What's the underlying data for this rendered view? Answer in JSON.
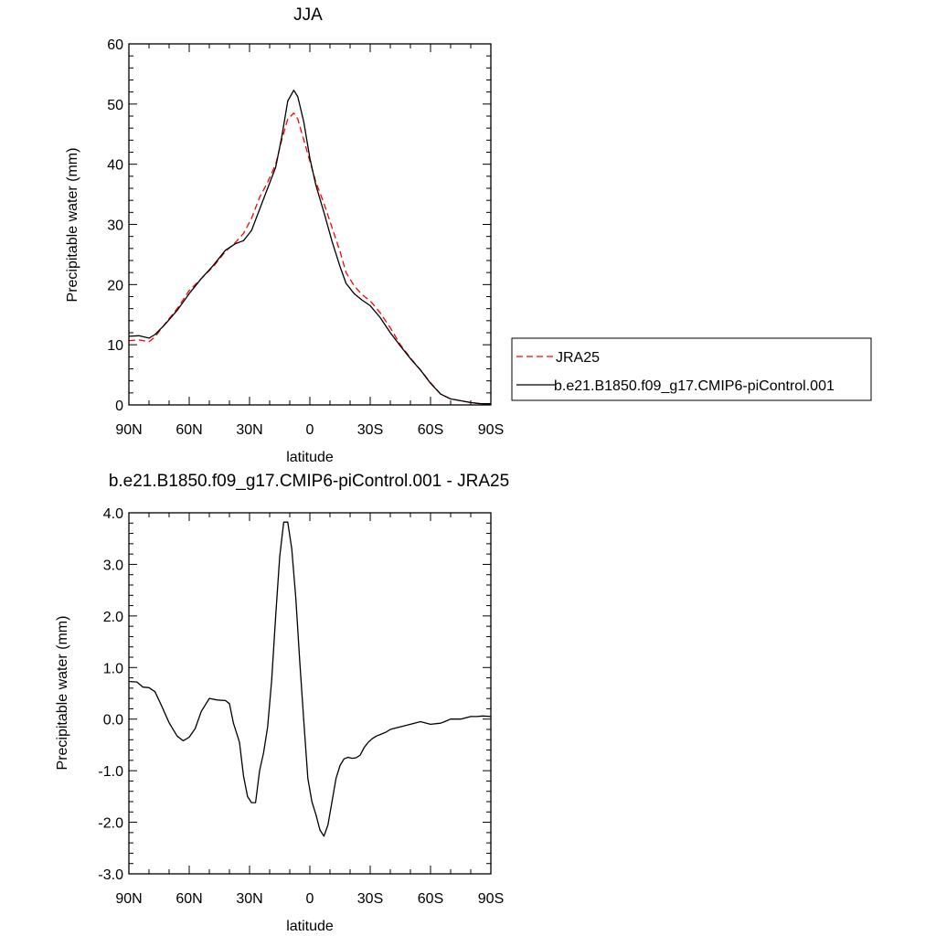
{
  "chart_data": [
    {
      "type": "line",
      "title": "JJA",
      "xlabel": "latitude",
      "ylabel": "Precipitable water (mm)",
      "xlim": [
        90,
        -90
      ],
      "ylim": [
        0,
        60
      ],
      "x_ticks": [
        90,
        60,
        30,
        0,
        -30,
        -60,
        -90
      ],
      "x_tick_labels": [
        "90N",
        "60N",
        "30N",
        "0",
        "30S",
        "60S",
        "90S"
      ],
      "y_ticks": [
        0,
        10,
        20,
        30,
        40,
        50,
        60
      ],
      "y_tick_labels": [
        "0",
        "10",
        "20",
        "30",
        "40",
        "50",
        "60"
      ],
      "grid": false,
      "legend_position": "right",
      "series": [
        {
          "name": "JRA25",
          "color": "#ff0000",
          "style": "dashed",
          "x": [
            90,
            85,
            80,
            77,
            72,
            66,
            60,
            54,
            48,
            42,
            37,
            33,
            29,
            25,
            21,
            17,
            14,
            11,
            8,
            6,
            3,
            0,
            -3,
            -7,
            -11,
            -15,
            -18,
            -22,
            -26,
            -30,
            -35,
            -40,
            -45,
            -50,
            -55,
            -60,
            -65,
            -70,
            -75,
            -80,
            -85,
            -90
          ],
          "y": [
            10.7,
            10.8,
            10.5,
            11.3,
            13.5,
            16,
            19,
            21,
            23,
            25.5,
            27,
            28.5,
            31,
            34.5,
            37,
            40,
            44,
            47.5,
            48.5,
            47.5,
            44,
            40.5,
            37,
            33.5,
            29.5,
            25.5,
            22,
            19.8,
            18.3,
            17.3,
            15.3,
            12.8,
            10,
            7.8,
            5.8,
            3.7,
            1.8,
            1,
            0.7,
            0.4,
            0.2,
            0.2
          ]
        },
        {
          "name": "b.e21.B1850.f09_g17.CMIP6-piControl.001",
          "color": "#000000",
          "style": "solid",
          "x": [
            90,
            85,
            80,
            77,
            72,
            66,
            60,
            54,
            48,
            42,
            37,
            33,
            29,
            25,
            21,
            17,
            14,
            11,
            8,
            6,
            3,
            0,
            -3,
            -7,
            -11,
            -15,
            -18,
            -22,
            -26,
            -30,
            -35,
            -40,
            -45,
            -50,
            -55,
            -60,
            -65,
            -70,
            -75,
            -80,
            -85,
            -90
          ],
          "y": [
            11.4,
            11.5,
            11.1,
            11.7,
            13.4,
            15.7,
            18.5,
            21,
            23.2,
            25.7,
            26.8,
            27.3,
            29,
            32.5,
            36,
            39.5,
            44.5,
            50.5,
            52.3,
            51.2,
            47,
            41,
            36.5,
            32,
            27.2,
            23,
            20.2,
            18.5,
            17.4,
            16.5,
            14.5,
            12,
            9.8,
            7.7,
            5.8,
            3.6,
            1.8,
            1,
            0.7,
            0.4,
            0.2,
            0.2
          ]
        }
      ]
    },
    {
      "type": "line",
      "title": "b.e21.B1850.f09_g17.CMIP6-piControl.001 - JRA25",
      "xlabel": "latitude",
      "ylabel": "Precipitable water (mm)",
      "xlim": [
        90,
        -90
      ],
      "ylim": [
        -3,
        4
      ],
      "x_ticks": [
        90,
        60,
        30,
        0,
        -30,
        -60,
        -90
      ],
      "x_tick_labels": [
        "90N",
        "60N",
        "30N",
        "0",
        "30S",
        "60S",
        "90S"
      ],
      "y_ticks": [
        -3,
        -2,
        -1,
        0,
        1,
        2,
        3,
        4
      ],
      "y_tick_labels": [
        "-3.0",
        "-2.0",
        "-1.0",
        "0.0",
        "1.0",
        "2.0",
        "3.0",
        "4.0"
      ],
      "grid": false,
      "series": [
        {
          "name": "",
          "color": "#000000",
          "style": "solid",
          "x": [
            90,
            86,
            83,
            80,
            77,
            74,
            70,
            66,
            63,
            60,
            57,
            54,
            50,
            46,
            42,
            40,
            38,
            35,
            33,
            31,
            29,
            27,
            25,
            23,
            21,
            19,
            17,
            15,
            13,
            11,
            9,
            7,
            5,
            3,
            1,
            -1,
            -3,
            -5,
            -7,
            -9,
            -11,
            -13,
            -15,
            -17,
            -19,
            -21,
            -23,
            -25,
            -27,
            -29,
            -31,
            -33,
            -35,
            -38,
            -40,
            -43,
            -46,
            -50,
            -55,
            -60,
            -65,
            -67,
            -70,
            -75,
            -80,
            -83,
            -86,
            -90
          ],
          "y": [
            0.73,
            0.72,
            0.62,
            0.61,
            0.53,
            0.28,
            -0.07,
            -0.33,
            -0.42,
            -0.35,
            -0.18,
            0.15,
            0.4,
            0.37,
            0.36,
            0.3,
            -0.08,
            -0.45,
            -1.1,
            -1.5,
            -1.62,
            -1.62,
            -1.0,
            -0.65,
            -0.15,
            0.75,
            2.0,
            3.15,
            3.82,
            3.82,
            3.3,
            2.35,
            1.1,
            -0.05,
            -1.15,
            -1.6,
            -1.85,
            -2.15,
            -2.27,
            -2.05,
            -1.6,
            -1.15,
            -0.9,
            -0.77,
            -0.74,
            -0.76,
            -0.75,
            -0.7,
            -0.55,
            -0.45,
            -0.38,
            -0.33,
            -0.3,
            -0.25,
            -0.2,
            -0.17,
            -0.14,
            -0.1,
            -0.05,
            -0.1,
            -0.08,
            -0.05,
            0.0,
            0.0,
            0.05,
            0.05,
            0.06,
            0.05
          ]
        }
      ]
    }
  ]
}
